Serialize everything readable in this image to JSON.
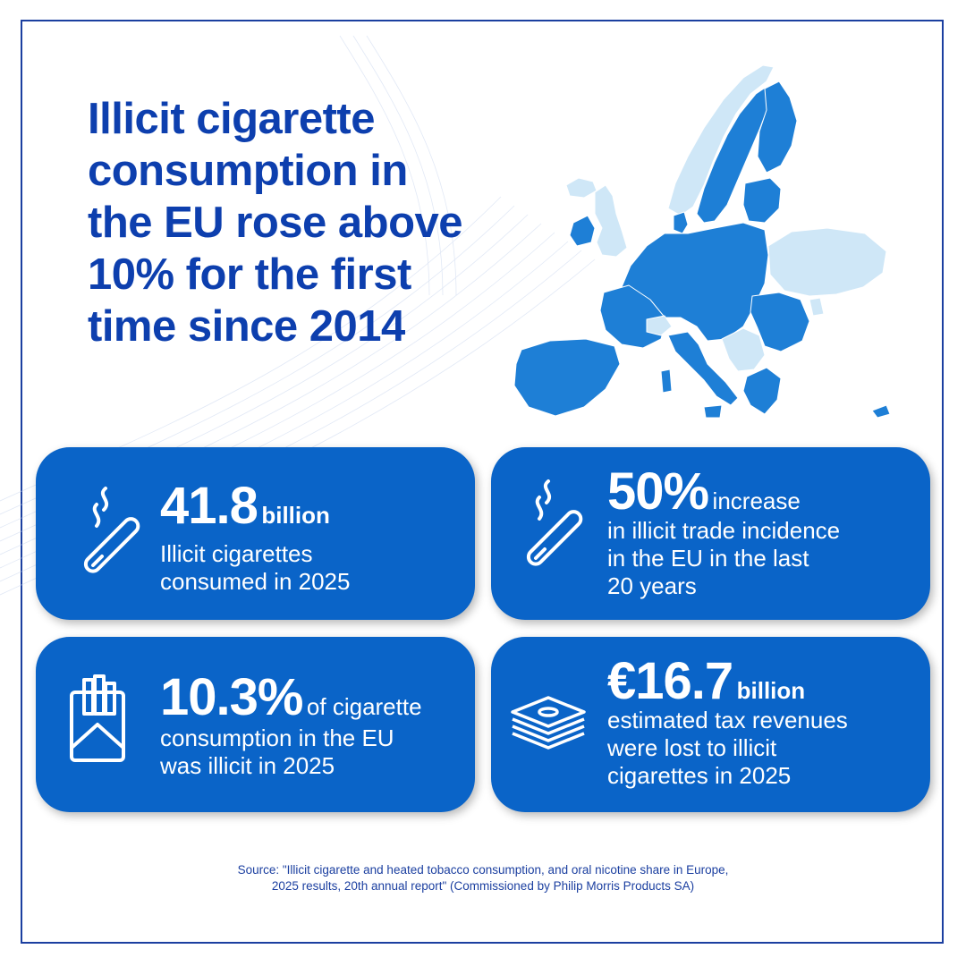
{
  "title": "Illicit cigarette consumption in the EU rose above 10% for the first time since 2014",
  "colors": {
    "title": "#0d3fae",
    "card": "#0a64c8",
    "map_dark": "#1e7fd6",
    "map_light": "#cfe7f7",
    "frame": "#1b3fa0"
  },
  "stats": [
    {
      "icon": "smoking-cigarette-icon",
      "value": "41.8",
      "unit": "billion",
      "inline": "",
      "description": [
        "Illicit cigarettes",
        "consumed in 2025"
      ]
    },
    {
      "icon": "smoking-cigarette-icon",
      "value": "50%",
      "unit": "",
      "inline": "increase",
      "description": [
        "in illicit trade incidence",
        "in the EU in the last",
        "20 years"
      ]
    },
    {
      "icon": "cigarette-pack-icon",
      "value": "10.3%",
      "unit": "",
      "inline": "of cigarette",
      "description": [
        "consumption in the EU",
        "was illicit in 2025"
      ]
    },
    {
      "icon": "money-stack-icon",
      "value": "€16.7",
      "unit": "billion",
      "inline": "",
      "description": [
        "estimated tax revenues",
        "were lost to illicit",
        "cigarettes in 2025"
      ]
    }
  ],
  "source": {
    "line1": "Source:  \"Illicit cigarette and heated tobacco consumption, and oral nicotine share in Europe,",
    "line2": "2025 results, 20th annual report\" (Commissioned by Philip Morris Products SA)"
  }
}
